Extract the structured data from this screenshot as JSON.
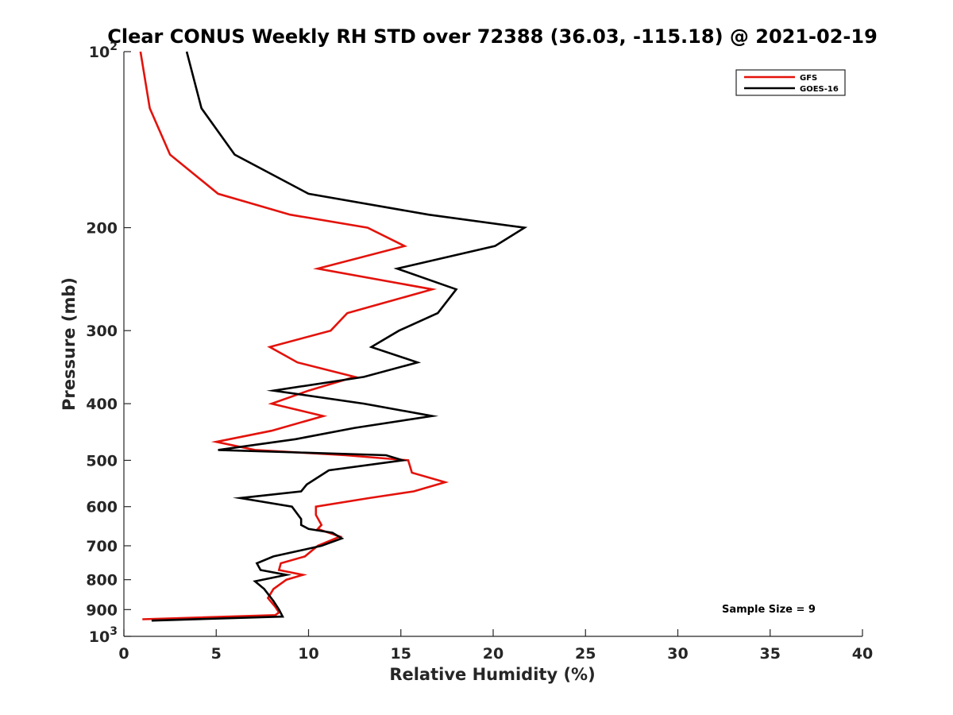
{
  "chart_data": {
    "type": "line",
    "title": "Clear CONUS Weekly RH STD over 72388 (36.03, -115.18) @ 2021-02-19",
    "xlabel": "Relative Humidity (%)",
    "ylabel": "Pressure (mb)",
    "xlim": [
      0,
      40
    ],
    "ylim": [
      100,
      1000
    ],
    "y_scale": "log",
    "y_reversed": true,
    "x_ticks": [
      "0",
      "5",
      "10",
      "15",
      "20",
      "25",
      "30",
      "35",
      "40"
    ],
    "y_ticks": [
      {
        "value": 100,
        "label": "10",
        "sup": "2"
      },
      {
        "value": 200,
        "label": "200",
        "sup": ""
      },
      {
        "value": 300,
        "label": "300",
        "sup": ""
      },
      {
        "value": 400,
        "label": "400",
        "sup": ""
      },
      {
        "value": 500,
        "label": "500",
        "sup": ""
      },
      {
        "value": 600,
        "label": "600",
        "sup": ""
      },
      {
        "value": 700,
        "label": "700",
        "sup": ""
      },
      {
        "value": 800,
        "label": "800",
        "sup": ""
      },
      {
        "value": 900,
        "label": "900",
        "sup": ""
      },
      {
        "value": 1000,
        "label": "10",
        "sup": "3"
      }
    ],
    "grid": false,
    "legend_position": "top-right",
    "annotation": "Sample Size = 9",
    "series": [
      {
        "name": "GFS",
        "color": "#e3120b",
        "points": [
          [
            0.9,
            100
          ],
          [
            1.4,
            125
          ],
          [
            2.5,
            150
          ],
          [
            5.1,
            175
          ],
          [
            9.0,
            190
          ],
          [
            13.2,
            200
          ],
          [
            15.2,
            215
          ],
          [
            10.5,
            235
          ],
          [
            16.7,
            255
          ],
          [
            12.1,
            280
          ],
          [
            11.2,
            300
          ],
          [
            7.9,
            320
          ],
          [
            9.4,
            340
          ],
          [
            12.5,
            360
          ],
          [
            10.0,
            380
          ],
          [
            8.0,
            400
          ],
          [
            10.8,
            420
          ],
          [
            8.0,
            445
          ],
          [
            5.0,
            465
          ],
          [
            7.1,
            480
          ],
          [
            12.0,
            490
          ],
          [
            15.4,
            500
          ],
          [
            15.6,
            525
          ],
          [
            17.4,
            545
          ],
          [
            15.7,
            565
          ],
          [
            13.3,
            580
          ],
          [
            10.4,
            600
          ],
          [
            10.4,
            620
          ],
          [
            10.7,
            645
          ],
          [
            10.5,
            655
          ],
          [
            11.7,
            675
          ],
          [
            10.5,
            700
          ],
          [
            9.8,
            730
          ],
          [
            8.5,
            750
          ],
          [
            8.4,
            770
          ],
          [
            9.7,
            785
          ],
          [
            8.8,
            800
          ],
          [
            8.1,
            830
          ],
          [
            7.8,
            860
          ],
          [
            8.2,
            890
          ],
          [
            8.4,
            910
          ],
          [
            8.2,
            920
          ],
          [
            1.0,
            935
          ]
        ]
      },
      {
        "name": "GOES-16",
        "color": "#000000",
        "points": [
          [
            3.4,
            100
          ],
          [
            4.2,
            125
          ],
          [
            6.0,
            150
          ],
          [
            10.0,
            175
          ],
          [
            16.5,
            190
          ],
          [
            21.7,
            200
          ],
          [
            20.1,
            215
          ],
          [
            14.8,
            235
          ],
          [
            18.0,
            255
          ],
          [
            17.0,
            280
          ],
          [
            14.9,
            300
          ],
          [
            13.4,
            320
          ],
          [
            15.9,
            340
          ],
          [
            13.0,
            360
          ],
          [
            8.1,
            380
          ],
          [
            13.0,
            400
          ],
          [
            16.7,
            420
          ],
          [
            12.5,
            440
          ],
          [
            9.3,
            460
          ],
          [
            5.1,
            480
          ],
          [
            14.2,
            490
          ],
          [
            15.1,
            500
          ],
          [
            11.1,
            520
          ],
          [
            9.9,
            550
          ],
          [
            9.6,
            565
          ],
          [
            6.3,
            580
          ],
          [
            9.1,
            600
          ],
          [
            9.6,
            630
          ],
          [
            9.6,
            645
          ],
          [
            10.0,
            655
          ],
          [
            11.3,
            665
          ],
          [
            11.8,
            680
          ],
          [
            10.7,
            700
          ],
          [
            8.1,
            730
          ],
          [
            7.2,
            750
          ],
          [
            7.4,
            770
          ],
          [
            8.8,
            785
          ],
          [
            7.1,
            805
          ],
          [
            7.6,
            830
          ],
          [
            8.1,
            870
          ],
          [
            8.4,
            900
          ],
          [
            8.6,
            925
          ],
          [
            1.5,
            940
          ]
        ]
      }
    ]
  }
}
